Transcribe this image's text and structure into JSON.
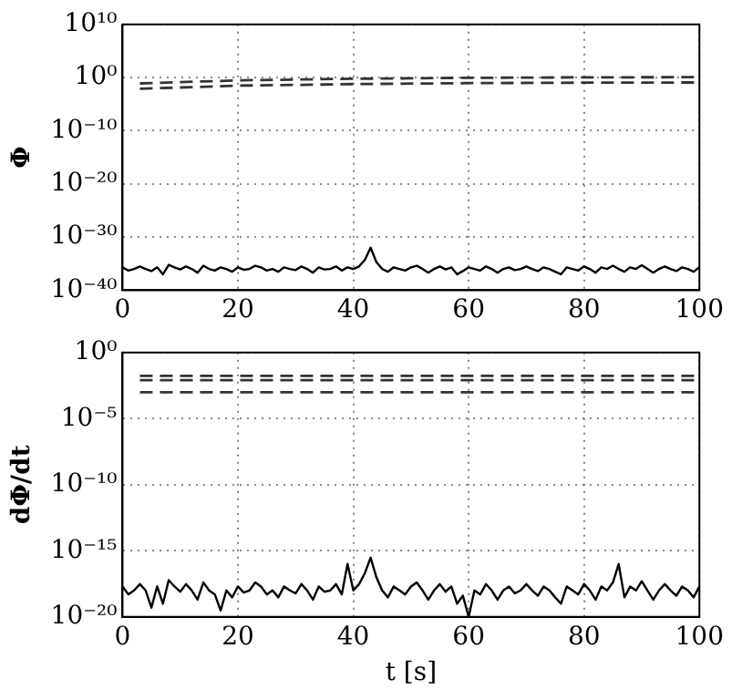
{
  "chart_data": [
    {
      "type": "line",
      "ylabel": "Φ",
      "x": [
        0,
        1,
        2,
        3,
        4,
        5,
        6,
        7,
        8,
        9,
        10,
        11,
        12,
        13,
        14,
        15,
        16,
        17,
        18,
        19,
        20,
        21,
        22,
        23,
        24,
        25,
        26,
        27,
        28,
        29,
        30,
        31,
        32,
        33,
        34,
        35,
        36,
        37,
        38,
        39,
        40,
        41,
        42,
        43,
        44,
        45,
        46,
        47,
        48,
        49,
        50,
        51,
        52,
        53,
        54,
        55,
        56,
        57,
        58,
        59,
        60,
        61,
        62,
        63,
        64,
        65,
        66,
        67,
        68,
        69,
        70,
        71,
        72,
        73,
        74,
        75,
        76,
        77,
        78,
        79,
        80,
        81,
        82,
        83,
        84,
        85,
        86,
        87,
        88,
        89,
        90,
        91,
        92,
        93,
        94,
        95,
        96,
        97,
        98,
        99,
        100
      ],
      "series": [
        {
          "color": "#000000",
          "line_style": "solid",
          "values": [
            2e-36,
            5e-37,
            1e-36,
            3e-36,
            1e-36,
            4e-37,
            2e-36,
            1e-37,
            6e-36,
            2e-36,
            8e-37,
            3e-36,
            1e-36,
            2e-37,
            4e-36,
            1e-36,
            5e-37,
            2e-36,
            1e-36,
            3e-37,
            2e-36,
            7e-37,
            1e-36,
            4e-36,
            2e-36,
            5e-37,
            1e-36,
            3e-37,
            2e-36,
            1e-36,
            6e-37,
            3e-36,
            1e-36,
            2e-37,
            2e-36,
            8e-37,
            1e-36,
            3e-36,
            5e-37,
            2e-36,
            1e-36,
            3e-36,
            5e-35,
            1e-32,
            2e-35,
            1e-36,
            3e-37,
            2e-36,
            1e-36,
            5e-37,
            2e-36,
            4e-36,
            1e-36,
            2e-37,
            1e-36,
            3e-36,
            8e-37,
            2e-36,
            1e-37,
            4e-37,
            2e-36,
            1e-36,
            5e-37,
            3e-36,
            1e-36,
            2e-37,
            1e-36,
            2e-36,
            6e-37,
            1e-36,
            3e-36,
            1e-36,
            4e-37,
            2e-36,
            1e-36,
            3e-37,
            1e-37,
            2e-36,
            1e-36,
            5e-37,
            3e-36,
            1e-36,
            2e-37,
            2e-36,
            1e-36,
            4e-36,
            1e-36,
            3e-37,
            2e-36,
            1e-36,
            5e-36,
            1e-36,
            2e-37,
            1e-36,
            3e-36,
            1e-36,
            4e-37,
            2e-36,
            1e-36,
            3e-37,
            2e-36
          ]
        },
        {
          "color": "#333333",
          "line_style": "dashed",
          "x": [
            3,
            20,
            40,
            60,
            80,
            100
          ],
          "values": [
            0.08,
            0.3,
            0.6,
            0.9,
            1.1,
            1.2
          ]
        },
        {
          "color": "#333333",
          "line_style": "dashed",
          "x": [
            3,
            20,
            40,
            60,
            80,
            100
          ],
          "values": [
            0.008,
            0.03,
            0.06,
            0.09,
            0.11,
            0.12
          ]
        }
      ],
      "log": "y",
      "grid": true,
      "legend": false,
      "xlim": [
        0,
        100
      ],
      "xticks": [
        0,
        20,
        40,
        60,
        80,
        100
      ],
      "ylim": [
        1e-40,
        10000000000.0
      ],
      "yticks": [
        {
          "value": 1e-40,
          "label": "10⁻⁴⁰"
        },
        {
          "value": 1e-30,
          "label": "10⁻³⁰"
        },
        {
          "value": 1e-20,
          "label": "10⁻²⁰"
        },
        {
          "value": 1e-10,
          "label": "10⁻¹⁰"
        },
        {
          "value": 1,
          "label": "10⁰"
        },
        {
          "value": 10000000000.0,
          "label": "10¹⁰"
        }
      ]
    },
    {
      "type": "line",
      "ylabel": "dΦ/dt",
      "xlabel": "t [s]",
      "x": [
        0,
        1,
        2,
        3,
        4,
        5,
        6,
        7,
        8,
        9,
        10,
        11,
        12,
        13,
        14,
        15,
        16,
        17,
        18,
        19,
        20,
        21,
        22,
        23,
        24,
        25,
        26,
        27,
        28,
        29,
        30,
        31,
        32,
        33,
        34,
        35,
        36,
        37,
        38,
        39,
        40,
        41,
        42,
        43,
        44,
        45,
        46,
        47,
        48,
        49,
        50,
        51,
        52,
        53,
        54,
        55,
        56,
        57,
        58,
        59,
        60,
        61,
        62,
        63,
        64,
        65,
        66,
        67,
        68,
        69,
        70,
        71,
        72,
        73,
        74,
        75,
        76,
        77,
        78,
        79,
        80,
        81,
        82,
        83,
        84,
        85,
        86,
        87,
        88,
        89,
        90,
        91,
        92,
        93,
        94,
        95,
        96,
        97,
        98,
        99,
        100
      ],
      "series": [
        {
          "color": "#000000",
          "line_style": "solid",
          "values": [
            2e-18,
            5e-19,
            1e-18,
            3e-18,
            1e-18,
            5e-20,
            2e-18,
            1e-19,
            6e-18,
            2e-18,
            8e-19,
            3e-18,
            1e-18,
            2e-19,
            4e-18,
            1e-18,
            5e-19,
            3e-20,
            1e-18,
            3e-19,
            2e-18,
            7e-19,
            1e-18,
            4e-18,
            2e-18,
            5e-19,
            1e-18,
            3e-19,
            2e-18,
            1e-18,
            6e-19,
            3e-18,
            1e-18,
            2e-19,
            2e-18,
            8e-19,
            1e-18,
            3e-18,
            5e-19,
            1e-16,
            1e-18,
            3e-18,
            2e-17,
            3e-16,
            1e-17,
            1e-18,
            3e-19,
            2e-18,
            1e-18,
            5e-19,
            2e-18,
            4e-18,
            1e-18,
            2e-19,
            1e-18,
            3e-18,
            8e-19,
            2e-18,
            1e-19,
            4e-19,
            1e-20,
            1e-18,
            5e-19,
            3e-18,
            1e-18,
            2e-19,
            1e-18,
            2e-18,
            6e-19,
            1e-18,
            3e-18,
            1e-18,
            4e-19,
            2e-18,
            1e-18,
            3e-19,
            1e-19,
            2e-18,
            1e-18,
            5e-19,
            3e-18,
            1e-18,
            2e-19,
            2e-18,
            1e-18,
            4e-18,
            1e-16,
            3e-19,
            2e-18,
            1e-18,
            5e-18,
            1e-18,
            2e-19,
            1e-18,
            3e-18,
            1e-18,
            4e-19,
            2e-18,
            1e-18,
            3e-19,
            2e-18
          ]
        },
        {
          "color": "#333333",
          "line_style": "dashed",
          "x": [
            3,
            100
          ],
          "values": [
            0.017,
            0.017
          ]
        },
        {
          "color": "#333333",
          "line_style": "dashed",
          "x": [
            3,
            100
          ],
          "values": [
            0.008,
            0.008
          ]
        },
        {
          "color": "#333333",
          "line_style": "dashed",
          "x": [
            3,
            100
          ],
          "values": [
            0.001,
            0.001
          ]
        }
      ],
      "log": "y",
      "grid": true,
      "legend": false,
      "xlim": [
        0,
        100
      ],
      "xticks": [
        0,
        20,
        40,
        60,
        80,
        100
      ],
      "ylim": [
        1e-20,
        1
      ],
      "yticks": [
        {
          "value": 1e-20,
          "label": "10⁻²⁰"
        },
        {
          "value": 1e-15,
          "label": "10⁻¹⁵"
        },
        {
          "value": 1e-10,
          "label": "10⁻¹⁰"
        },
        {
          "value": 1e-05,
          "label": "10⁻⁵"
        },
        {
          "value": 1,
          "label": "10⁰"
        }
      ]
    }
  ]
}
